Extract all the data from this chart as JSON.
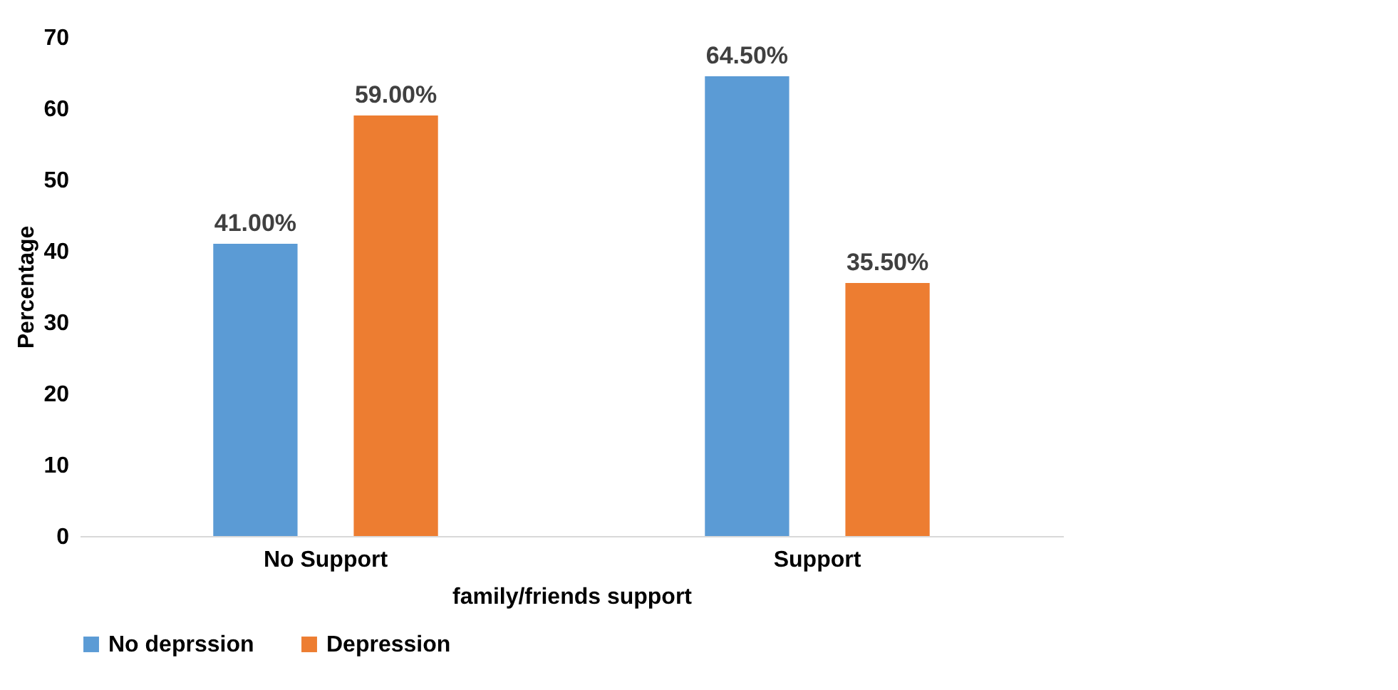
{
  "chart_data": {
    "type": "bar",
    "xlabel": "family/friends support",
    "ylabel": "Percentage",
    "categories": [
      "No Support",
      "Support"
    ],
    "series": [
      {
        "name": "No deprssion",
        "color": "#5b9bd5",
        "values": [
          41,
          64.5
        ],
        "value_labels": [
          "41.00%",
          "64.50%"
        ]
      },
      {
        "name": "Depression",
        "color": "#ed7d31",
        "values": [
          59,
          35.5
        ],
        "value_labels": [
          "59.00%",
          "35.50%"
        ]
      }
    ],
    "ylim": [
      0,
      70
    ],
    "yticks": [
      0,
      10,
      20,
      30,
      40,
      50,
      60,
      70
    ],
    "legend": "bottom"
  }
}
